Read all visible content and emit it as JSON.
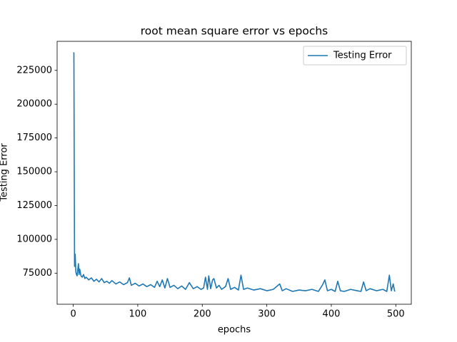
{
  "chart_data": {
    "type": "line",
    "title": "root mean square error vs epochs",
    "xlabel": "epochs",
    "ylabel": "Testing Error",
    "x": [
      0,
      1,
      2,
      3,
      4,
      5,
      6,
      8,
      9,
      10,
      12,
      14,
      16,
      18,
      20,
      24,
      28,
      32,
      36,
      40,
      44,
      48,
      52,
      56,
      60,
      66,
      72,
      78,
      84,
      87,
      90,
      96,
      102,
      108,
      114,
      120,
      126,
      130,
      134,
      138,
      142,
      146,
      150,
      156,
      162,
      168,
      174,
      180,
      186,
      192,
      198,
      202,
      205,
      208,
      210,
      213,
      216,
      218,
      222,
      226,
      230,
      236,
      240,
      244,
      250,
      256,
      260,
      264,
      270,
      280,
      290,
      300,
      310,
      320,
      324,
      330,
      340,
      350,
      360,
      370,
      380,
      386,
      390,
      394,
      400,
      406,
      410,
      414,
      420,
      430,
      440,
      446,
      450,
      454,
      460,
      470,
      480,
      486,
      490,
      493,
      496,
      498,
      499
    ],
    "series": [
      {
        "name": "Testing Error",
        "color": "#1f77b4",
        "values": [
          238000,
          238000,
          80000,
          89000,
          76000,
          74000,
          73000,
          82000,
          74000,
          78000,
          73000,
          72000,
          74000,
          71000,
          72000,
          70000,
          71500,
          69000,
          70500,
          68500,
          71000,
          68000,
          69000,
          67500,
          69500,
          67000,
          68500,
          66500,
          68000,
          71500,
          66000,
          67500,
          65500,
          67000,
          65000,
          66500,
          64500,
          69000,
          65000,
          70000,
          64000,
          71000,
          64500,
          66000,
          63500,
          65500,
          63000,
          68000,
          63500,
          65000,
          63000,
          64000,
          72000,
          63000,
          73000,
          63500,
          70000,
          71000,
          64000,
          66000,
          63000,
          65000,
          71000,
          63000,
          64500,
          62500,
          73500,
          63000,
          64000,
          62500,
          63500,
          62000,
          63000,
          67000,
          62000,
          63500,
          61500,
          62500,
          62000,
          63000,
          61500,
          66000,
          70000,
          62000,
          63000,
          61500,
          69000,
          62000,
          61500,
          63000,
          62000,
          61500,
          68500,
          62000,
          63500,
          62000,
          63000,
          61500,
          73500,
          62000,
          67000,
          62000,
          61500
        ]
      }
    ],
    "xlim": [
      -25,
      524
    ],
    "ylim": [
      52000,
      246500
    ],
    "xticks": [
      0,
      100,
      200,
      300,
      400,
      500
    ],
    "yticks": [
      75000,
      100000,
      125000,
      150000,
      175000,
      200000,
      225000
    ],
    "legend": "upper right"
  }
}
